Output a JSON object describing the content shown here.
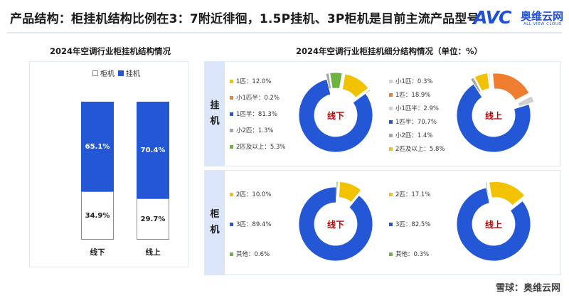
{
  "headline": "产品结构：柜挂机结构比例在3：7附近徘徊，1.5P挂机、3P柜机是目前主流产品型号",
  "logo": {
    "mark": "AVC",
    "name_cn": "奥维云网",
    "name_en": "ALL VIEW CLOUD"
  },
  "watermark": "雪球：奥维云网",
  "colors": {
    "blue": "#2457d6",
    "orange": "#ee7d30",
    "yellow": "#f2c200",
    "gray": "#a6a6a6",
    "green": "#6db33f",
    "lightgray": "#d0d0d0",
    "lightblue": "#9dc3e6"
  },
  "chart_data": [
    {
      "type": "bar",
      "stacked": true,
      "title": "2024年空调行业柜挂机结构情况",
      "categories": [
        "线下",
        "线上"
      ],
      "series": [
        {
          "name": "柜机",
          "values": [
            34.9,
            29.7
          ],
          "labels": [
            "34.9%",
            "29.7%"
          ],
          "color": "#ffffff"
        },
        {
          "name": "挂机",
          "values": [
            65.1,
            70.4
          ],
          "labels": [
            "65.1%",
            "70.4%"
          ],
          "color": "#2457d6"
        }
      ],
      "legend": [
        "柜机",
        "挂机"
      ],
      "legend_position": "top",
      "ylim": [
        0,
        100
      ]
    },
    {
      "type": "pie",
      "title": "2024年空调行业柜挂机细分结构情况（单位：%）",
      "panels": [
        {
          "row": "挂机",
          "channel": "线下",
          "slices": [
            {
              "name": "1匹",
              "value": 12.0,
              "label": "1匹：12.0%",
              "color": "#f2c200"
            },
            {
              "name": "小1匹半",
              "value": 0.2,
              "label": "小1匹半：0.2%",
              "color": "#ee7d30"
            },
            {
              "name": "1匹半",
              "value": 81.3,
              "label": "1匹半：81.3%",
              "color": "#2457d6"
            },
            {
              "name": "小2匹",
              "value": 1.3,
              "label": "小2匹：1.3%",
              "color": "#a6a6a6"
            },
            {
              "name": "2匹及以上",
              "value": 5.3,
              "label": "2匹及以上：5.3%",
              "color": "#6db33f"
            }
          ]
        },
        {
          "row": "挂机",
          "channel": "线上",
          "slices": [
            {
              "name": "小1匹",
              "value": 0.3,
              "label": "小1匹：0.3%",
              "color": "#d0d0d0"
            },
            {
              "name": "1匹",
              "value": 18.9,
              "label": "1匹：18.9%",
              "color": "#ee7d30"
            },
            {
              "name": "小1匹半",
              "value": 2.9,
              "label": "小1匹半：2.9%",
              "color": "#d0d0d0"
            },
            {
              "name": "1匹半",
              "value": 70.7,
              "label": "1匹半：70.7%",
              "color": "#2457d6"
            },
            {
              "name": "小2匹",
              "value": 1.4,
              "label": "小2匹：1.4%",
              "color": "#a6a6a6"
            },
            {
              "name": "2匹及以上",
              "value": 5.8,
              "label": "2匹及以上：5.8%",
              "color": "#f2c200"
            }
          ]
        },
        {
          "row": "柜机",
          "channel": "线下",
          "slices": [
            {
              "name": "2匹",
              "value": 10.0,
              "label": "2匹：10.0%",
              "color": "#f2c200"
            },
            {
              "name": "3匹",
              "value": 89.4,
              "label": "3匹：89.4%",
              "color": "#2457d6"
            },
            {
              "name": "其他",
              "value": 0.6,
              "label": "其他：0.6%",
              "color": "#6db33f"
            }
          ]
        },
        {
          "row": "柜机",
          "channel": "线上",
          "slices": [
            {
              "name": "2匹",
              "value": 17.1,
              "label": "2匹：17.1%",
              "color": "#f2c200"
            },
            {
              "name": "3匹",
              "value": 82.5,
              "label": "3匹：82.5%",
              "color": "#2457d6"
            },
            {
              "name": "其他",
              "value": 0.3,
              "label": "其他：0.3%",
              "color": "#6db33f"
            }
          ]
        }
      ]
    }
  ]
}
